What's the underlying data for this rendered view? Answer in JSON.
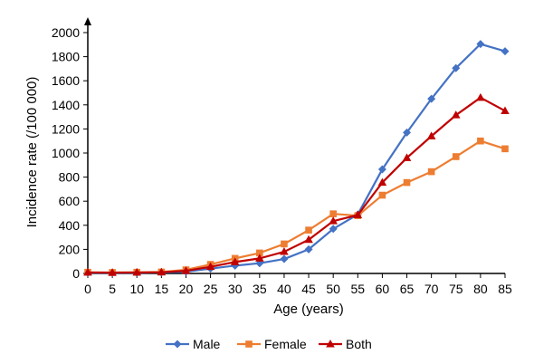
{
  "chart_data": {
    "type": "line",
    "xlabel": "Age (years)",
    "ylabel": "Incidence rate (/100 000)",
    "categories": [
      "0",
      "5",
      "10",
      "15",
      "20",
      "25",
      "30",
      "35",
      "40",
      "45",
      "50",
      "55",
      "60",
      "65",
      "70",
      "75",
      "80",
      "85"
    ],
    "ylim": [
      0,
      2000
    ],
    "yticks": [
      0,
      200,
      400,
      600,
      800,
      1000,
      1200,
      1400,
      1600,
      1800,
      2000
    ],
    "grid": false,
    "legend_position": "bottom",
    "series": [
      {
        "name": "Male",
        "color": "#4472C4",
        "marker": "diamond",
        "values": [
          5,
          5,
          5,
          8,
          15,
          40,
          65,
          85,
          120,
          200,
          370,
          490,
          865,
          1170,
          1450,
          1705,
          1905,
          1845
        ]
      },
      {
        "name": "Female",
        "color": "#ED7D31",
        "marker": "square",
        "values": [
          10,
          8,
          10,
          12,
          30,
          75,
          125,
          170,
          245,
          360,
          495,
          480,
          650,
          755,
          845,
          970,
          1100,
          1035
        ]
      },
      {
        "name": "Both",
        "color": "#C00000",
        "marker": "triangle",
        "values": [
          8,
          7,
          8,
          10,
          22,
          55,
          95,
          125,
          180,
          280,
          435,
          485,
          755,
          960,
          1140,
          1315,
          1460,
          1350
        ]
      }
    ]
  }
}
